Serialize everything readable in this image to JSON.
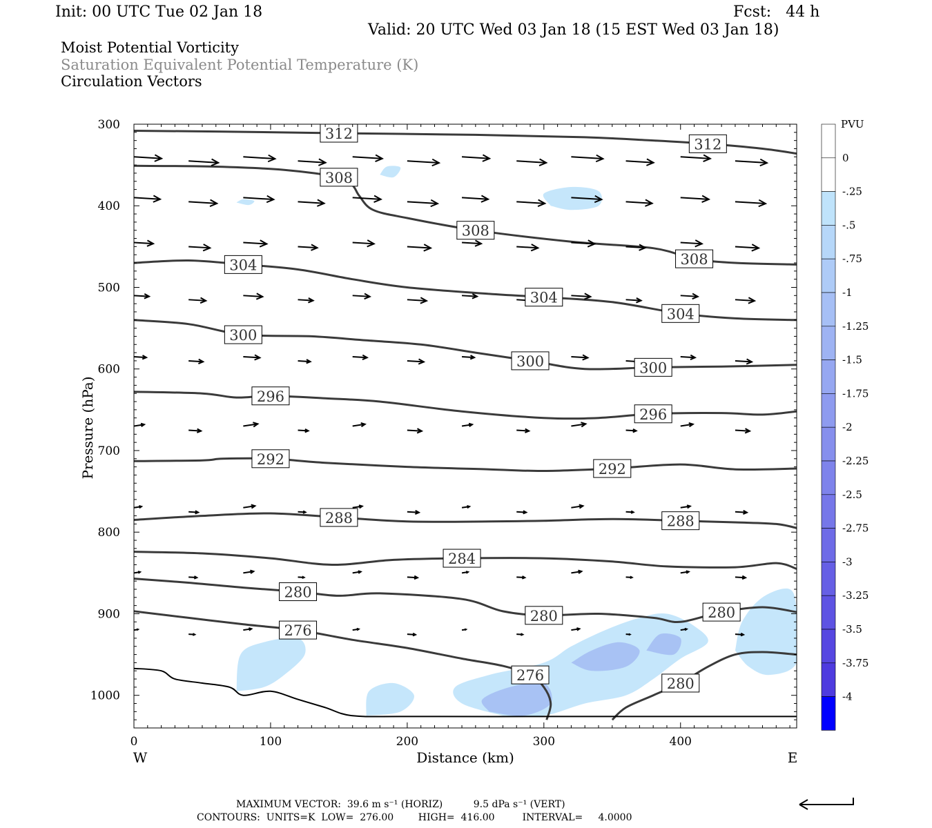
{
  "header": {
    "init": "Init: 00 UTC Tue 02 Jan 18",
    "fcst": "Fcst:   44 h",
    "valid": "Valid: 20 UTC Wed 03 Jan 18 (15 EST Wed 03 Jan 18)"
  },
  "fields": {
    "field1": "Moist Potential Vorticity",
    "field2": "Saturation Equivalent Potential Temperature (K)",
    "field3": "Circulation Vectors"
  },
  "footer": {
    "line1": "MAXIMUM VECTOR:  39.6 m s⁻¹ (HORIZ)          9.5 dPa s⁻¹ (VERT)",
    "line2": "CONTOURS:  UNITS=K  LOW=  276.00        HIGH=  416.00         INTERVAL=     4.0000"
  },
  "colors": {
    "contour": "#3a3a3a",
    "terrain": "#000000",
    "pv_light": "#bfe3fb",
    "pv_mid": "#a9c4f4",
    "pv_dark": "#8da5ee"
  },
  "chart_data": {
    "type": "cross-section",
    "xlabel": "Distance (km)",
    "ylabel": "Pressure (hPa)",
    "x_ticks": [
      "0",
      "100",
      "200",
      "300",
      "400"
    ],
    "x_tick_values": [
      0,
      100,
      200,
      300,
      400
    ],
    "x_ends": {
      "left": "W",
      "right": "E"
    },
    "xlim": [
      0,
      485
    ],
    "y_ticks": [
      "300",
      "400",
      "500",
      "600",
      "700",
      "800",
      "900",
      "1000"
    ],
    "y_tick_values": [
      300,
      400,
      500,
      600,
      700,
      800,
      900,
      1000
    ],
    "ylim": [
      300,
      1040
    ],
    "colorbar": {
      "unit": "PVU",
      "labels": [
        "0",
        "-.25",
        "-.5",
        "-.75",
        "-1",
        "-1.25",
        "-1.5",
        "-1.75",
        "-2",
        "-2.25",
        "-2.5",
        "-2.75",
        "-3",
        "-3.25",
        "-3.5",
        "-3.75",
        "-4"
      ],
      "colors": [
        "#ffffff",
        "#ffffff",
        "#bfe3fb",
        "#b6d7f9",
        "#aecbf7",
        "#a6bff5",
        "#9eb3f3",
        "#96a7f1",
        "#8e9bef",
        "#868fed",
        "#7e83eb",
        "#7677e9",
        "#6e6be7",
        "#665fe5",
        "#5e53e3",
        "#5647e1",
        "#4e3bdf",
        "#0000ff"
      ]
    },
    "theta_contours": [
      {
        "level": 312,
        "labels": [
          "312",
          "312"
        ],
        "points": [
          [
            0,
            308
          ],
          [
            60,
            309
          ],
          [
            150,
            311
          ],
          [
            250,
            313
          ],
          [
            330,
            316
          ],
          [
            380,
            320
          ],
          [
            420,
            324
          ],
          [
            460,
            330
          ],
          [
            485,
            336
          ]
        ]
      },
      {
        "level": 308,
        "labels": [
          "308",
          "308",
          "308"
        ],
        "points": [
          [
            0,
            351
          ],
          [
            60,
            352
          ],
          [
            110,
            356
          ],
          [
            150,
            365
          ],
          [
            160,
            375
          ],
          [
            165,
            388
          ],
          [
            175,
            405
          ],
          [
            200,
            415
          ],
          [
            250,
            430
          ],
          [
            320,
            444
          ],
          [
            380,
            452
          ],
          [
            410,
            465
          ],
          [
            440,
            470
          ],
          [
            485,
            472
          ]
        ]
      },
      {
        "level": 304,
        "labels": [
          "304",
          "304",
          "304"
        ],
        "points": [
          [
            0,
            470
          ],
          [
            40,
            467
          ],
          [
            80,
            472
          ],
          [
            120,
            478
          ],
          [
            160,
            490
          ],
          [
            200,
            500
          ],
          [
            260,
            508
          ],
          [
            300,
            512
          ],
          [
            350,
            518
          ],
          [
            400,
            532
          ],
          [
            440,
            538
          ],
          [
            485,
            540
          ]
        ]
      },
      {
        "level": 300,
        "labels": [
          "300",
          "300",
          "300"
        ],
        "points": [
          [
            0,
            540
          ],
          [
            40,
            545
          ],
          [
            80,
            558
          ],
          [
            130,
            560
          ],
          [
            170,
            565
          ],
          [
            210,
            570
          ],
          [
            250,
            580
          ],
          [
            290,
            590
          ],
          [
            330,
            600
          ],
          [
            380,
            598
          ],
          [
            430,
            597
          ],
          [
            485,
            595
          ]
        ]
      },
      {
        "level": 296,
        "labels": [
          "296",
          "296"
        ],
        "points": [
          [
            0,
            628
          ],
          [
            50,
            630
          ],
          [
            75,
            635
          ],
          [
            100,
            633
          ],
          [
            140,
            636
          ],
          [
            180,
            640
          ],
          [
            240,
            652
          ],
          [
            300,
            660
          ],
          [
            340,
            660
          ],
          [
            380,
            655
          ],
          [
            430,
            654
          ],
          [
            460,
            656
          ],
          [
            485,
            652
          ]
        ]
      },
      {
        "level": 292,
        "labels": [
          "292",
          "292"
        ],
        "points": [
          [
            0,
            713
          ],
          [
            50,
            712
          ],
          [
            65,
            710
          ],
          [
            100,
            710
          ],
          [
            140,
            715
          ],
          [
            200,
            720
          ],
          [
            260,
            723
          ],
          [
            300,
            725
          ],
          [
            350,
            722
          ],
          [
            400,
            717
          ],
          [
            440,
            723
          ],
          [
            485,
            722
          ]
        ]
      },
      {
        "level": 288,
        "labels": [
          "288",
          "288"
        ],
        "points": [
          [
            0,
            785
          ],
          [
            50,
            780
          ],
          [
            100,
            777
          ],
          [
            150,
            782
          ],
          [
            200,
            787
          ],
          [
            260,
            787
          ],
          [
            300,
            786
          ],
          [
            350,
            784
          ],
          [
            400,
            786
          ],
          [
            440,
            788
          ],
          [
            470,
            790
          ],
          [
            485,
            795
          ]
        ]
      },
      {
        "level": 284,
        "labels": [
          "284"
        ],
        "points": [
          [
            0,
            824
          ],
          [
            50,
            826
          ],
          [
            100,
            832
          ],
          [
            145,
            840
          ],
          [
            190,
            834
          ],
          [
            240,
            832
          ],
          [
            300,
            832
          ],
          [
            350,
            836
          ],
          [
            390,
            842
          ],
          [
            440,
            843
          ],
          [
            470,
            838
          ],
          [
            485,
            845
          ]
        ]
      },
      {
        "level": 280,
        "labels": [
          "280",
          "280",
          "280"
        ],
        "points": [
          [
            0,
            857
          ],
          [
            40,
            862
          ],
          [
            80,
            868
          ],
          [
            120,
            873
          ],
          [
            150,
            878
          ],
          [
            180,
            875
          ],
          [
            240,
            882
          ],
          [
            270,
            897
          ],
          [
            300,
            902
          ],
          [
            340,
            900
          ],
          [
            380,
            905
          ],
          [
            400,
            910
          ],
          [
            430,
            898
          ],
          [
            460,
            892
          ],
          [
            485,
            898
          ]
        ]
      },
      {
        "level": 276,
        "labels": [
          "276",
          "276"
        ],
        "points": [
          [
            0,
            897
          ],
          [
            40,
            905
          ],
          [
            80,
            913
          ],
          [
            120,
            920
          ],
          [
            160,
            932
          ],
          [
            200,
            942
          ],
          [
            240,
            955
          ],
          [
            270,
            964
          ],
          [
            290,
            975
          ],
          [
            300,
            990
          ],
          [
            305,
            1010
          ],
          [
            302,
            1030
          ]
        ]
      },
      {
        "level": 280,
        "labels": [
          "280"
        ],
        "points": [
          [
            350,
            1030
          ],
          [
            360,
            1015
          ],
          [
            380,
            1000
          ],
          [
            400,
            985
          ],
          [
            420,
            965
          ],
          [
            440,
            950
          ],
          [
            460,
            947
          ],
          [
            485,
            950
          ]
        ]
      }
    ],
    "terrain_pressure": [
      [
        0,
        967
      ],
      [
        20,
        970
      ],
      [
        30,
        980
      ],
      [
        50,
        985
      ],
      [
        70,
        990
      ],
      [
        80,
        1000
      ],
      [
        100,
        995
      ],
      [
        120,
        1005
      ],
      [
        140,
        1015
      ],
      [
        160,
        1025
      ],
      [
        200,
        1026
      ],
      [
        300,
        1026
      ],
      [
        400,
        1026
      ],
      [
        485,
        1026
      ]
    ],
    "vectors": {
      "max_horiz": "39.6 m s⁻¹",
      "max_vert": "9.5 dPa s⁻¹",
      "rows": [
        {
          "p": 340,
          "x": [
            0,
            40,
            80,
            120,
            160,
            200,
            240,
            280,
            320,
            360,
            400,
            440
          ],
          "len": 40
        },
        {
          "p": 390,
          "x": [
            0,
            40,
            80,
            120,
            160,
            200,
            240,
            280,
            320,
            360,
            400,
            440
          ],
          "len": 38
        },
        {
          "p": 445,
          "x": [
            0,
            40,
            80,
            120,
            160,
            200,
            240,
            280,
            320,
            360,
            400,
            440
          ],
          "len": 28
        },
        {
          "p": 510,
          "x": [
            0,
            40,
            80,
            120,
            160,
            200,
            240,
            280,
            320,
            360,
            400,
            440
          ],
          "len": 22
        },
        {
          "p": 585,
          "x": [
            0,
            40,
            80,
            120,
            160,
            200,
            240,
            280,
            320,
            360,
            400,
            440
          ],
          "len": 18
        },
        {
          "p": 670,
          "x": [
            0,
            40,
            80,
            120,
            160,
            200,
            240,
            280,
            320,
            360,
            400,
            440
          ],
          "len": 15
        },
        {
          "p": 770,
          "x": [
            0,
            40,
            80,
            120,
            160,
            200,
            240,
            280,
            320,
            360,
            400,
            440
          ],
          "len": 11
        },
        {
          "p": 850,
          "x": [
            0,
            40,
            80,
            120,
            160,
            200,
            240,
            280,
            320,
            360,
            400,
            440
          ],
          "len": 9
        },
        {
          "p": 920,
          "x": [
            0,
            40,
            80,
            120,
            160,
            200,
            240,
            280,
            320,
            360,
            400,
            440
          ],
          "len": 6
        }
      ]
    }
  }
}
